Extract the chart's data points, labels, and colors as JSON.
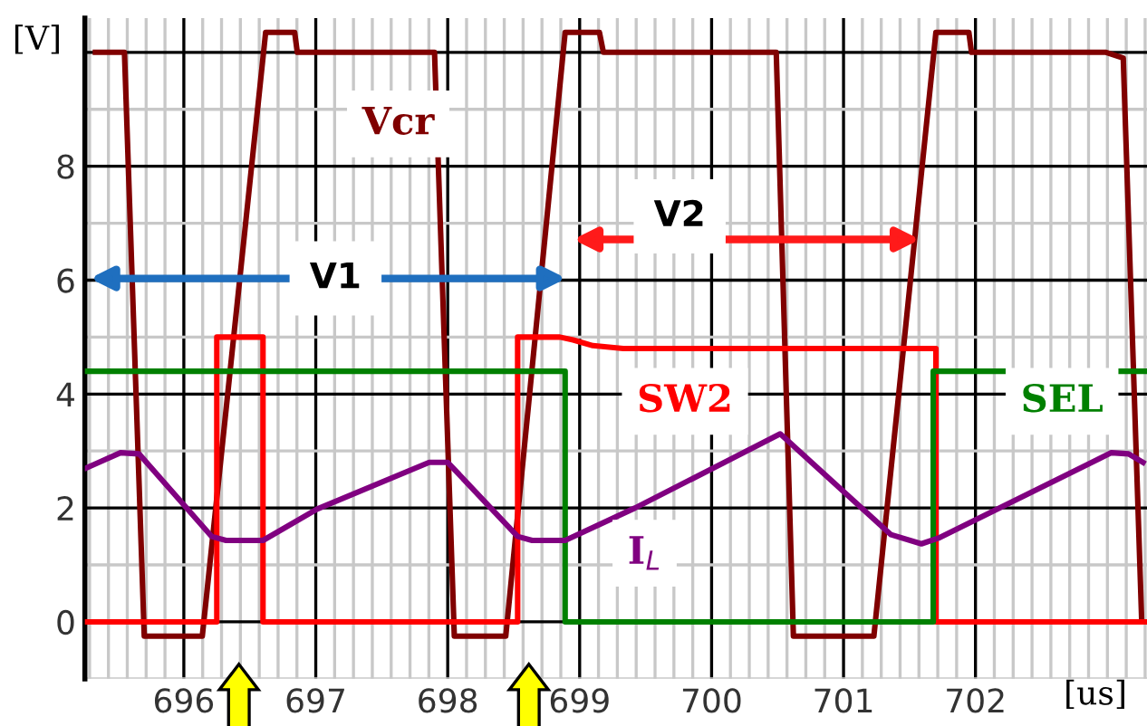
{
  "chart_data": {
    "type": "line",
    "xlabel": "[us]",
    "ylabel": "[V]",
    "xlim": [
      695.25,
      703.3
    ],
    "ylim": [
      -1,
      10.6
    ],
    "xticks": [
      696,
      697,
      698,
      699,
      700,
      701,
      702
    ],
    "yticks": [
      0,
      2,
      4,
      6,
      8,
      {
        "value": 10,
        "label": null
      }
    ],
    "grid": true,
    "legend": false,
    "marker": "none",
    "line_style": "solid",
    "annotations": [
      "V1",
      "V2"
    ],
    "series": [
      {
        "name": "Vcr",
        "color": "#800000",
        "x": [
          695.33,
          695.55,
          695.7,
          696.14,
          696.62,
          696.84,
          696.86,
          697.9,
          698.05,
          698.44,
          698.89,
          699.15,
          699.18,
          700.49,
          700.62,
          701.23,
          701.7,
          701.95,
          701.97,
          702.99,
          703.12,
          703.26
        ],
        "values": [
          10,
          10,
          -0.25,
          -0.25,
          10.35,
          10.35,
          10,
          10,
          -0.25,
          -0.25,
          10.35,
          10.35,
          10,
          10,
          -0.25,
          -0.25,
          10.35,
          10.35,
          10,
          10,
          9.9,
          0
        ]
      },
      {
        "name": "SW2",
        "color": "#ff0000",
        "x": [
          695.25,
          696.25,
          696.25,
          696.6,
          696.6,
          698.53,
          698.53,
          698.85,
          698.95,
          699.1,
          699.33,
          701.7,
          701.7,
          703.3
        ],
        "values": [
          0,
          0,
          5,
          5,
          0,
          0,
          5,
          5,
          4.95,
          4.85,
          4.8,
          4.8,
          0,
          0
        ]
      },
      {
        "name": "SEL",
        "color": "#008000",
        "x": [
          695.25,
          698.89,
          698.89,
          701.68,
          701.68,
          703.3
        ],
        "values": [
          4.4,
          4.4,
          0,
          0,
          4.4,
          4.4
        ]
      },
      {
        "name": "I$_{L}$",
        "color": "#800080",
        "x": [
          695.26,
          695.52,
          695.66,
          696.21,
          696.32,
          696.6,
          697.01,
          697.86,
          698.0,
          698.53,
          698.64,
          698.89,
          699.42,
          700.52,
          701.36,
          701.59,
          701.73,
          703.03,
          703.16,
          703.27
        ],
        "values": [
          2.7,
          2.97,
          2.95,
          1.5,
          1.43,
          1.43,
          1.98,
          2.8,
          2.8,
          1.5,
          1.43,
          1.43,
          2.0,
          3.3,
          1.53,
          1.37,
          1.48,
          2.97,
          2.95,
          2.8
        ]
      }
    ]
  }
}
